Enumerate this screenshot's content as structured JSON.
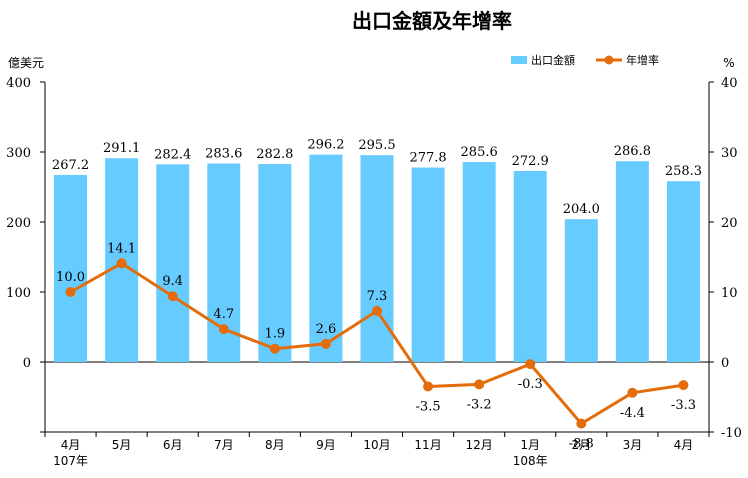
{
  "chart_data": {
    "type": "bar",
    "title": "出口金額及年增率",
    "y_left_unit": "億美元",
    "y_right_unit": "%",
    "ylim_left": [
      -100,
      400
    ],
    "ylim_right": [
      -10,
      40
    ],
    "y_left_ticks": [
      "400",
      "300",
      "200",
      "100",
      "0"
    ],
    "y_right_ticks": [
      "40",
      "30",
      "20",
      "10",
      "0",
      "-10"
    ],
    "categories": [
      "4月",
      "5月",
      "6月",
      "7月",
      "8月",
      "9月",
      "10月",
      "11月",
      "12月",
      "1月",
      "2月",
      "3月",
      "4月"
    ],
    "year_labels": [
      {
        "label": "107年",
        "index": 0
      },
      {
        "label": "108年",
        "index": 9
      }
    ],
    "legend_position": "top-right",
    "series": [
      {
        "name": "出口金額",
        "kind": "bar",
        "axis": "left",
        "color": "#66CCFF",
        "values": [
          267.2,
          291.1,
          282.4,
          283.6,
          282.8,
          296.2,
          295.5,
          277.8,
          285.6,
          272.9,
          204.0,
          286.8,
          258.3
        ],
        "labels": [
          "267.2",
          "291.1",
          "282.4",
          "283.6",
          "282.8",
          "296.2",
          "295.5",
          "277.8",
          "285.6",
          "272.9",
          "204.0",
          "286.8",
          "258.3"
        ]
      },
      {
        "name": "年增率",
        "kind": "line",
        "axis": "right",
        "color": "#E46C0A",
        "values": [
          10.0,
          14.1,
          9.4,
          4.7,
          1.9,
          2.6,
          7.3,
          -3.5,
          -3.2,
          -0.3,
          -8.8,
          -4.4,
          -3.3
        ],
        "labels": [
          "10.0",
          "14.1",
          "9.4",
          "4.7",
          "1.9",
          "2.6",
          "7.3",
          "-3.5",
          "-3.2",
          "-0.3",
          "-8.8",
          "-4.4",
          "-3.3"
        ]
      }
    ]
  }
}
